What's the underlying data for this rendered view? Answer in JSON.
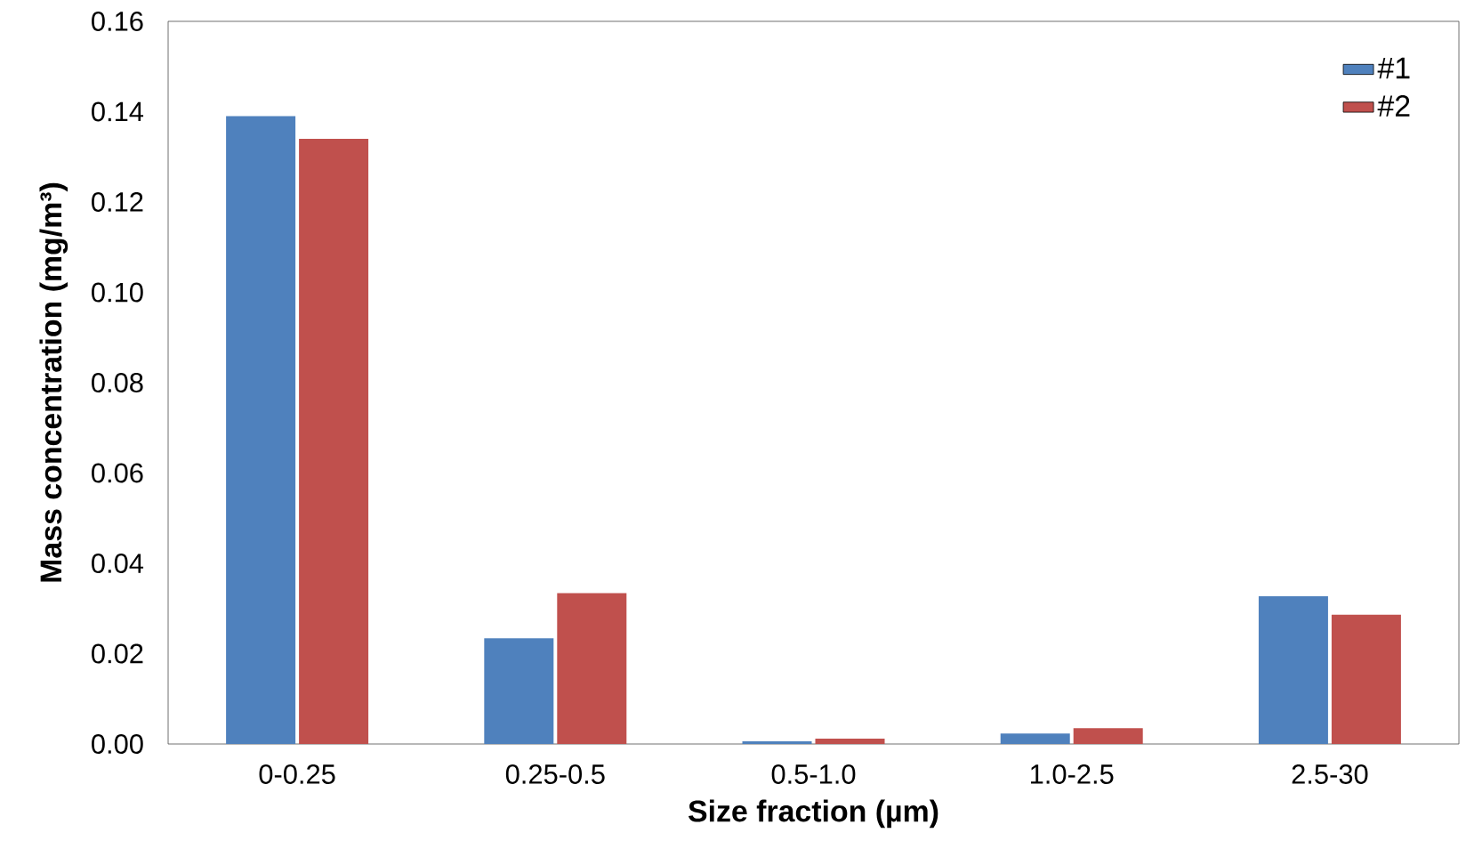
{
  "chart_data": {
    "type": "bar",
    "xlabel": "Size fraction (µm)",
    "ylabel": "Mass concentration (mg/m³)",
    "categories": [
      "0-0.25",
      "0.25-0.5",
      "0.5-1.0",
      "1.0-2.5",
      "2.5-30"
    ],
    "series": [
      {
        "name": "#1",
        "color": "#4f81bd",
        "values": [
          0.139,
          0.0234,
          0.0006,
          0.0023,
          0.0327
        ]
      },
      {
        "name": "#2",
        "color": "#c0504d",
        "values": [
          0.134,
          0.0334,
          0.0012,
          0.0035,
          0.0286
        ]
      }
    ],
    "ylim": [
      0,
      0.16
    ],
    "yticks": [
      {
        "value": 0,
        "label": "0.00"
      },
      {
        "value": 0.02,
        "label": "0.02"
      },
      {
        "value": 0.04,
        "label": "0.04"
      },
      {
        "value": 0.06,
        "label": "0.06"
      },
      {
        "value": 0.08,
        "label": "0.08"
      },
      {
        "value": 0.1,
        "label": "0.10"
      },
      {
        "value": 0.12,
        "label": "0.12"
      },
      {
        "value": 0.14,
        "label": "0.14"
      },
      {
        "value": 0.16,
        "label": "0.16"
      }
    ],
    "legend": "top right",
    "grid": false
  }
}
